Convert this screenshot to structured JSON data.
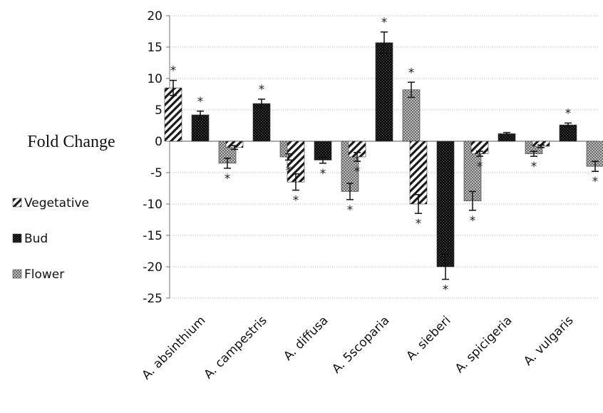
{
  "chart_data": {
    "type": "bar",
    "ylabel": "Fold Change",
    "ylim": [
      -25,
      20
    ],
    "yticks": [
      20,
      15,
      10,
      5,
      0,
      -5,
      -10,
      -15,
      -20,
      -25
    ],
    "grid": true,
    "legend_position": "left",
    "categories": [
      "A. absinthium",
      "A. campestris",
      "A. diffusa",
      "A. 5scoparia",
      "A. sieberi",
      "A. spicigeria",
      "A. vulgaris"
    ],
    "series": [
      {
        "name": "Vegetative",
        "pattern": "diagonal-stripes",
        "values": [
          8.5,
          -1.0,
          -6.5,
          -2.5,
          -10.0,
          -2.0,
          -0.8
        ],
        "errors": [
          1.2,
          0.3,
          1.3,
          0.7,
          1.5,
          0.4,
          0.2
        ],
        "significant": [
          true,
          false,
          true,
          true,
          true,
          true,
          false
        ]
      },
      {
        "name": "Bud",
        "pattern": "dark-dotted",
        "values": [
          4.2,
          6.0,
          -3.0,
          15.7,
          -20.0,
          1.2,
          2.6
        ],
        "errors": [
          0.6,
          0.7,
          0.5,
          1.7,
          2.0,
          0.2,
          0.3
        ],
        "significant": [
          true,
          true,
          true,
          true,
          true,
          false,
          true
        ]
      },
      {
        "name": "Flower",
        "pattern": "light-checker",
        "values": [
          -3.5,
          -2.5,
          -8.0,
          8.2,
          -9.5,
          -2.0,
          -4.0
        ],
        "errors": [
          0.8,
          0.5,
          1.3,
          1.2,
          1.5,
          0.4,
          0.8
        ],
        "significant": [
          true,
          true,
          true,
          true,
          true,
          true,
          true
        ]
      }
    ],
    "annotation_symbol": "*"
  }
}
